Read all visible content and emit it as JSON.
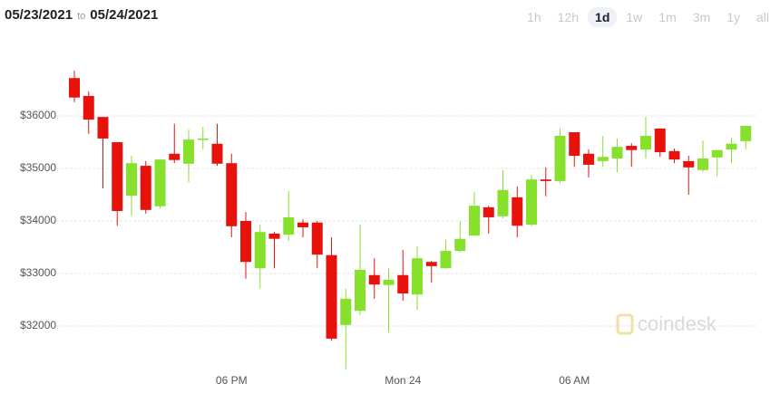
{
  "header": {
    "from": "05/23/2021",
    "to_word": "to",
    "to": "05/24/2021"
  },
  "range_buttons": {
    "options": [
      "1h",
      "12h",
      "1d",
      "1w",
      "1m",
      "3m",
      "1y",
      "all"
    ],
    "selected_index": 2
  },
  "watermark": "coindesk",
  "chart_data": {
    "type": "candlestick",
    "up_color": "#86e02c",
    "down_color": "#e8120c",
    "open": [
      36720,
      36380,
      35980,
      35500,
      34480,
      35050,
      34280,
      35280,
      35090,
      35550,
      35470,
      35100,
      34000,
      33100,
      33760,
      33740,
      33970,
      33970,
      33350,
      32020,
      32290,
      32970,
      32780,
      32970,
      32600,
      33220,
      33100,
      33430,
      33720,
      34260,
      34090,
      34450,
      33930,
      34790,
      34760,
      35690,
      35280,
      35140,
      35190,
      35430,
      35360,
      35760,
      35330,
      35140,
      34970,
      35210,
      35360,
      35520
    ],
    "high": [
      36860,
      36470,
      35980,
      35500,
      35240,
      35140,
      35170,
      35850,
      35740,
      35790,
      35850,
      35280,
      34170,
      33930,
      33790,
      34570,
      34030,
      34000,
      33690,
      32710,
      33930,
      33290,
      33100,
      33450,
      33520,
      33240,
      33640,
      34000,
      34550,
      34290,
      34970,
      34660,
      34880,
      35020,
      35760,
      35690,
      35360,
      35620,
      35570,
      35480,
      35980,
      35760,
      35380,
      35240,
      35530,
      35350,
      35590,
      35810
    ],
    "low": [
      36260,
      35660,
      34620,
      33910,
      34100,
      34140,
      34240,
      35100,
      34740,
      35360,
      35050,
      33690,
      32900,
      32720,
      33100,
      33620,
      33690,
      33100,
      31720,
      31170,
      32210,
      32520,
      31880,
      32480,
      32310,
      32830,
      33090,
      33400,
      33720,
      33760,
      34050,
      33690,
      33900,
      34470,
      34720,
      35030,
      34830,
      35030,
      34930,
      35030,
      35190,
      35220,
      35100,
      34500,
      34930,
      34850,
      35100,
      35360
    ],
    "close": [
      36350,
      35930,
      35570,
      34190,
      35100,
      34210,
      35170,
      35160,
      35550,
      35570,
      35090,
      33900,
      33220,
      33790,
      33660,
      34070,
      33880,
      33360,
      31760,
      32520,
      33070,
      32790,
      32880,
      32620,
      33290,
      33140,
      33430,
      33660,
      34290,
      34070,
      34590,
      33910,
      34790,
      34760,
      35620,
      35240,
      35070,
      35220,
      35410,
      35350,
      35620,
      35310,
      35170,
      35020,
      35190,
      35350,
      35470,
      35810
    ],
    "xlim": [
      -5,
      49
    ],
    "xticks": [
      {
        "value": 11,
        "label": "06 PM"
      },
      {
        "value": 23,
        "label": "Mon 24"
      },
      {
        "value": 35,
        "label": "06 AM"
      }
    ],
    "ylim": [
      31100,
      37500
    ],
    "yticks": [
      {
        "value": 32000,
        "label": "$32000"
      },
      {
        "value": 33000,
        "label": "$33000"
      },
      {
        "value": 34000,
        "label": "$34000"
      },
      {
        "value": 35000,
        "label": "$35000"
      },
      {
        "value": 36000,
        "label": "$36000"
      }
    ],
    "grid": true
  }
}
